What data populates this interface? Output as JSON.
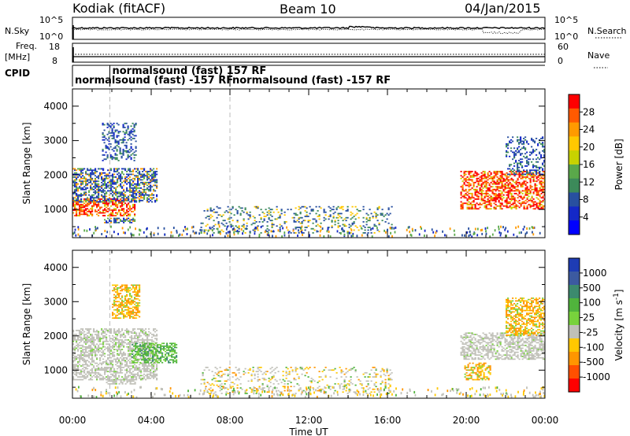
{
  "header": {
    "station": "Kodiak (fitACF)",
    "beam": "Beam 10",
    "date": "04/Jan/2015"
  },
  "noise_panel": {
    "left_label": "N.Sky",
    "right_label": "N.Search",
    "left_ticks": [
      "10^5",
      "10^0"
    ],
    "right_ticks": [
      "10^5",
      "10^0"
    ]
  },
  "freq_panel": {
    "left_label_line1": "Freq.",
    "left_label_line2": "[MHz]",
    "right_label": "Nave",
    "left_ticks": [
      "18",
      "8"
    ],
    "right_ticks": [
      "60",
      "0"
    ]
  },
  "cpid": {
    "label": "CPID",
    "entries": [
      {
        "text": "normalsound (fast) -157 RF",
        "time": 0.0
      },
      {
        "text": "normalsound (fast) 157 RF",
        "time": 1.9
      },
      {
        "text": "normalsound (fast) -157 RF",
        "time": 8.0
      }
    ]
  },
  "chart_data": [
    {
      "type": "heatmap",
      "name": "power",
      "ylabel": "Slant Range [km]",
      "ylim": [
        180,
        4500
      ],
      "xlim": [
        0,
        24
      ],
      "y_ticks": [
        1000,
        2000,
        3000,
        4000
      ],
      "colorbar": {
        "label": "Power [dB]",
        "ticks": [
          "28",
          "24",
          "20",
          "16",
          "12",
          "8",
          "4"
        ],
        "colors": [
          "#ff0000",
          "#ff5a00",
          "#ff9a00",
          "#ffc800",
          "#c8d200",
          "#5aa84a",
          "#3c8a5a",
          "#2850a0",
          "#1428c8",
          "#0000ff"
        ]
      },
      "regions": [
        {
          "t0": 0.0,
          "t1": 3.2,
          "r0": 800,
          "r1": 1300,
          "level": "high"
        },
        {
          "t0": 0.0,
          "t1": 4.3,
          "r0": 1200,
          "r1": 2200,
          "level": "mid"
        },
        {
          "t0": 1.5,
          "t1": 3.2,
          "r0": 2400,
          "r1": 3500,
          "level": "low"
        },
        {
          "t0": 1.6,
          "t1": 3.2,
          "r0": 600,
          "r1": 750,
          "level": "mid"
        },
        {
          "t0": 6.5,
          "t1": 16.2,
          "r0": 300,
          "r1": 1100,
          "level": "mixed"
        },
        {
          "t0": 19.7,
          "t1": 24.0,
          "r0": 1000,
          "r1": 2100,
          "level": "high"
        },
        {
          "t0": 22.0,
          "t1": 24.0,
          "r0": 2000,
          "r1": 3100,
          "level": "low"
        }
      ]
    },
    {
      "type": "heatmap",
      "name": "velocity",
      "ylabel": "Slant Range [km]",
      "ylim": [
        180,
        4500
      ],
      "xlim": [
        0,
        24
      ],
      "y_ticks": [
        1000,
        2000,
        3000,
        4000
      ],
      "x_ticks": [
        "00:00",
        "04:00",
        "08:00",
        "12:00",
        "16:00",
        "20:00",
        "00:00"
      ],
      "xlabel": "Time UT",
      "colorbar": {
        "label": "Velocity [m s",
        "label_sup": "-1",
        "label_end": "]",
        "ticks": [
          "1000",
          "500",
          "100",
          "25",
          "-25",
          "-100",
          "-500",
          "-1000"
        ],
        "colors": [
          "#1e3cb4",
          "#3c5aa0",
          "#3c8a6e",
          "#50b43c",
          "#78d23c",
          "#c0c0b8",
          "#ffc800",
          "#ff9600",
          "#ff5000",
          "#ff0000"
        ]
      },
      "regions": [
        {
          "t0": 0.0,
          "t1": 4.3,
          "r0": 700,
          "r1": 2200,
          "level": "ground"
        },
        {
          "t0": 1.7,
          "t1": 3.2,
          "r0": 580,
          "r1": 720,
          "level": "ground"
        },
        {
          "t0": 2.0,
          "t1": 3.4,
          "r0": 2500,
          "r1": 3500,
          "level": "orange"
        },
        {
          "t0": 3.0,
          "t1": 5.3,
          "r0": 1200,
          "r1": 1800,
          "level": "green"
        },
        {
          "t0": 6.5,
          "t1": 16.2,
          "r0": 300,
          "r1": 1100,
          "level": "mixed"
        },
        {
          "t0": 19.7,
          "t1": 24.0,
          "r0": 1300,
          "r1": 2100,
          "level": "ground"
        },
        {
          "t0": 19.9,
          "t1": 21.2,
          "r0": 700,
          "r1": 1200,
          "level": "orange"
        },
        {
          "t0": 22.0,
          "t1": 24.0,
          "r0": 2000,
          "r1": 3100,
          "level": "orange"
        }
      ]
    }
  ]
}
